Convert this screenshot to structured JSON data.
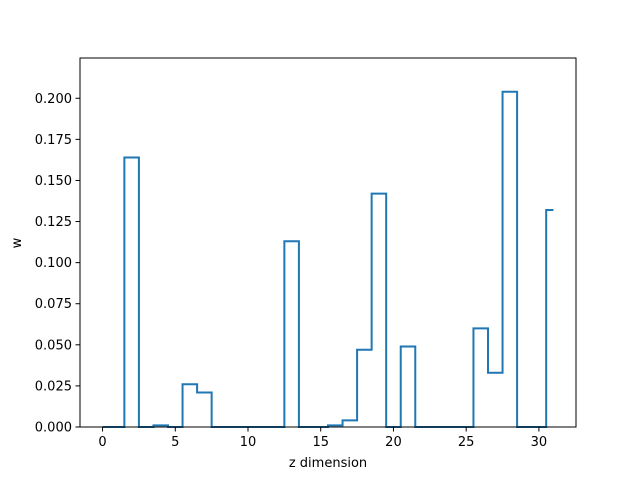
{
  "chart_data": {
    "type": "step",
    "xlabel": "z dimension",
    "ylabel": "w",
    "xlim": [
      -1.55,
      32.55
    ],
    "ylim": [
      0,
      0.2245
    ],
    "xticks": [
      0,
      5,
      10,
      15,
      20,
      25,
      30
    ],
    "yticks": [
      0.0,
      0.025,
      0.05,
      0.075,
      0.1,
      0.125,
      0.15,
      0.175,
      0.2
    ],
    "xtick_labels": [
      "0",
      "5",
      "10",
      "15",
      "20",
      "25",
      "30"
    ],
    "ytick_labels": [
      "0.000",
      "0.025",
      "0.050",
      "0.075",
      "0.100",
      "0.125",
      "0.150",
      "0.175",
      "0.200"
    ],
    "series": [
      {
        "color": "#1f77b4",
        "step_where": "mid",
        "x": [
          0,
          1,
          2,
          3,
          4,
          5,
          6,
          7,
          8,
          9,
          10,
          11,
          12,
          13,
          14,
          15,
          16,
          17,
          18,
          19,
          20,
          21,
          22,
          23,
          24,
          25,
          26,
          27,
          28,
          29,
          30,
          31
        ],
        "values": [
          0.0,
          0.0,
          0.164,
          0.0,
          0.001,
          0.0,
          0.026,
          0.021,
          0.0,
          0.0,
          0.0,
          0.0,
          0.0,
          0.113,
          0.0,
          0.0,
          0.001,
          0.004,
          0.047,
          0.142,
          0.0,
          0.049,
          0.0,
          0.0,
          0.0,
          0.0,
          0.06,
          0.033,
          0.204,
          0.0,
          0.0,
          0.132
        ]
      }
    ]
  }
}
